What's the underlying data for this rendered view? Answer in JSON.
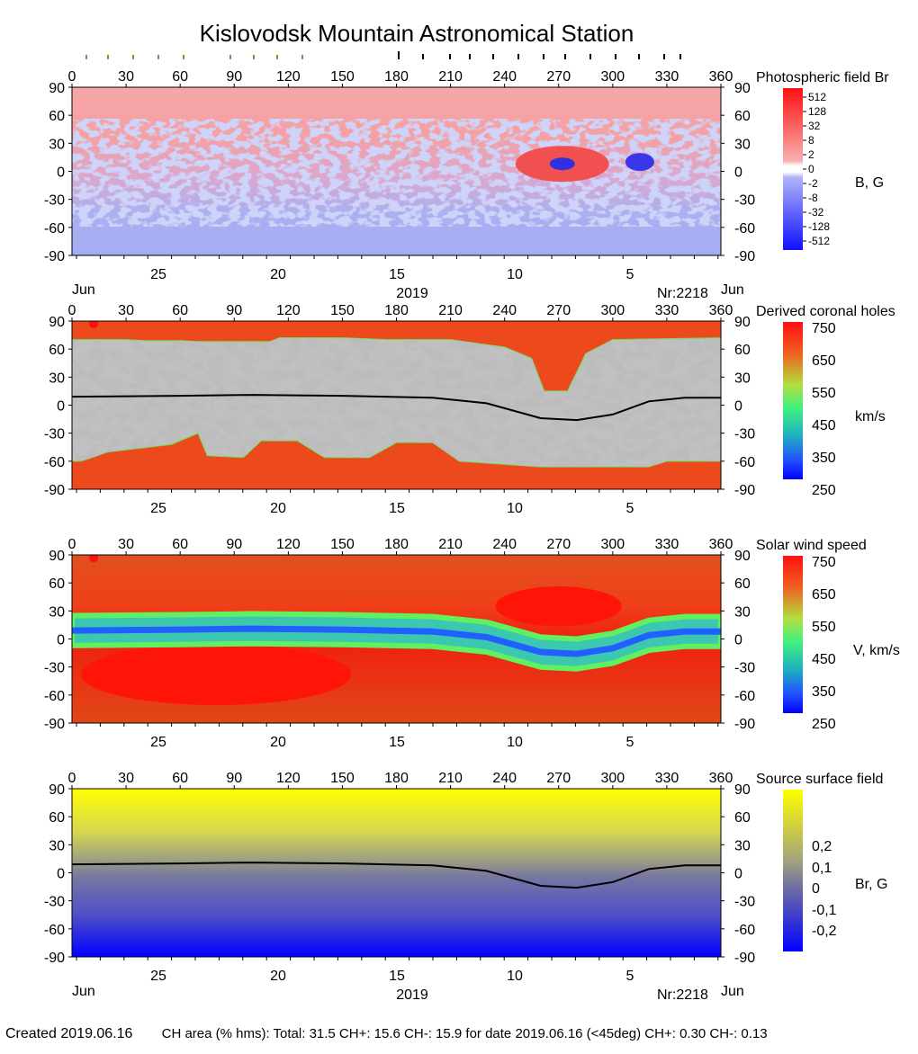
{
  "title": "Kislovodsk Mountain Astronomical Station",
  "footer": {
    "created": "Created  2019.06.16",
    "stats": "CH area (% hms): Total: 31.5 CH+: 15.6   CH-: 15.9 for date 2019.06.16 (<45deg) CH+: 0.30    CH-: 0.13"
  },
  "colors": {
    "positive_field": "#f4a0a0",
    "negative_field": "#a0a8f0",
    "coronal_gray_light": "#c0c0c0",
    "coronal_gray_dark": "#808080",
    "wind_fast": "#f03010",
    "wind_slow": "#2060ff",
    "neutral_line": "#000000",
    "source_positive": "#ffff00",
    "source_negative": "#0000ff"
  },
  "chart_data": [
    {
      "id": "photospheric",
      "type": "heatmap",
      "title": "Photospheric field Br",
      "unit_label": "B, G",
      "longitude_ticks": [
        "0",
        "30",
        "60",
        "90",
        "120",
        "150",
        "180",
        "210",
        "240",
        "270",
        "300",
        "330",
        "360"
      ],
      "latitude_ticks": [
        "90",
        "60",
        "30",
        "0",
        "-30",
        "-60",
        "-90"
      ],
      "date_ticks": [
        "25",
        "20",
        "15",
        "10",
        "5"
      ],
      "bottom_left_label": "Jun",
      "bottom_center_label": "2019",
      "bottom_right_label": "Nr:2218",
      "bottom_right_month": "Jun",
      "colorbar_ticks": [
        "512",
        "128",
        "32",
        "8",
        "2",
        "0",
        "-2",
        "-8",
        "-32",
        "-128",
        "-512"
      ],
      "xlim": [
        0,
        360
      ],
      "ylim": [
        -90,
        90
      ]
    },
    {
      "id": "coronal-holes",
      "type": "heatmap",
      "title": "Derived coronal holes",
      "unit_label": "km/s",
      "longitude_ticks": [
        "0",
        "30",
        "60",
        "90",
        "120",
        "150",
        "180",
        "210",
        "240",
        "270",
        "300",
        "330",
        "360"
      ],
      "latitude_ticks": [
        "90",
        "60",
        "30",
        "0",
        "-30",
        "-60",
        "-90"
      ],
      "date_ticks": [
        "25",
        "20",
        "15",
        "10",
        "5"
      ],
      "colorbar_ticks": [
        "750",
        "650",
        "550",
        "450",
        "350",
        "250"
      ],
      "neutral_line": {
        "lon": [
          0,
          60,
          100,
          150,
          200,
          230,
          260,
          280,
          300,
          320,
          340,
          360
        ],
        "lat": [
          9,
          10,
          11,
          10,
          8,
          2,
          -14,
          -16,
          -10,
          4,
          8,
          8
        ]
      },
      "xlim": [
        0,
        360
      ],
      "ylim": [
        -90,
        90
      ]
    },
    {
      "id": "solar-wind",
      "type": "heatmap",
      "title": "Solar wind speed",
      "unit_label": "V, km/s",
      "longitude_ticks": [
        "0",
        "30",
        "60",
        "90",
        "120",
        "150",
        "180",
        "210",
        "240",
        "270",
        "300",
        "330",
        "360"
      ],
      "latitude_ticks": [
        "90",
        "60",
        "30",
        "0",
        "-30",
        "-60",
        "-90"
      ],
      "date_ticks": [
        "25",
        "20",
        "15",
        "10",
        "5"
      ],
      "colorbar_ticks": [
        "750",
        "650",
        "550",
        "450",
        "350",
        "250"
      ],
      "xlim": [
        0,
        360
      ],
      "ylim": [
        -90,
        90
      ]
    },
    {
      "id": "source-surface",
      "type": "heatmap",
      "title": "Source surface field",
      "unit_label": "Br, G",
      "longitude_ticks": [
        "0",
        "30",
        "60",
        "90",
        "120",
        "150",
        "180",
        "210",
        "240",
        "270",
        "300",
        "330",
        "360"
      ],
      "latitude_ticks": [
        "90",
        "60",
        "30",
        "0",
        "-30",
        "-60",
        "-90"
      ],
      "date_ticks": [
        "25",
        "20",
        "15",
        "10",
        "5"
      ],
      "bottom_left_label": "Jun",
      "bottom_center_label": "2019",
      "bottom_right_label": "Nr:2218",
      "bottom_right_month": "Jun",
      "colorbar_ticks": [
        "0,2",
        "0,1",
        "0",
        "-0,1",
        "-0,2"
      ],
      "neutral_line": {
        "lon": [
          0,
          60,
          100,
          150,
          200,
          230,
          260,
          280,
          300,
          320,
          340,
          360
        ],
        "lat": [
          9,
          10,
          11,
          10,
          8,
          2,
          -14,
          -16,
          -10,
          4,
          8,
          8
        ]
      },
      "xlim": [
        0,
        360
      ],
      "ylim": [
        -90,
        90
      ]
    }
  ]
}
